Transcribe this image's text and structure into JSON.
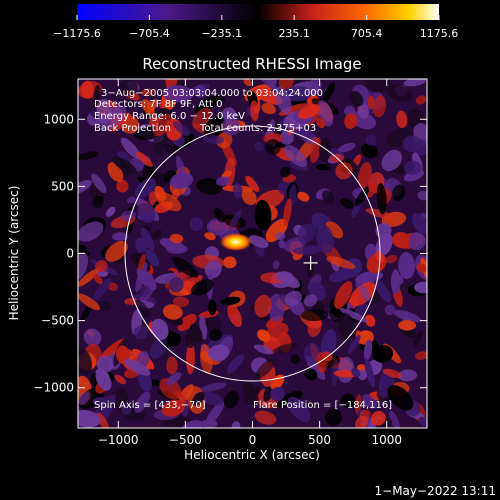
{
  "chart_data": {
    "type": "heatmap",
    "title": "Reconstructed RHESSI Image",
    "xlabel": "Heliocentric X (arcsec)",
    "ylabel": "Heliocentric Y (arcsec)",
    "xlim": [
      -1300,
      1300
    ],
    "ylim": [
      -1300,
      1300
    ],
    "xticks": [
      -1000,
      -500,
      0,
      500,
      1000
    ],
    "yticks": [
      -1000,
      -500,
      0,
      500,
      1000
    ],
    "xtick_labels": [
      "−1000",
      "−500",
      "0",
      "500",
      "1000"
    ],
    "ytick_labels": [
      "−1000",
      "−500",
      "0",
      "500",
      "1000"
    ],
    "colorbar": {
      "min": -1175.6,
      "max": 1175.6,
      "ticks": [
        -1175.6,
        -705.4,
        -235.1,
        235.1,
        705.4,
        1175.6
      ],
      "tick_labels": [
        "−1175.6",
        "−705.4",
        "−235.1",
        "235.1",
        "705.4",
        "1175.6"
      ]
    },
    "annotations": {
      "time_range": "3−Aug−2005 03:03:04.000 to 03:04:24.000",
      "detectors": "Detectors: 7F 8F 9F, Att 0",
      "energy": "Energy Range: 6.0 − 12.0 keV",
      "method": "Back Projection",
      "counts": "Total counts: 2.375+03",
      "spin_axis": "Spin Axis = [433,−70]",
      "flare_position": "Flare Position = [−184,116]"
    },
    "solar_limb_radius_arcsec": 950,
    "spin_axis": [
      433,
      -70
    ],
    "flare_position": [
      -184,
      116
    ],
    "flare_peak_value": 1175.6,
    "footer": "1−May−2022 13:11"
  },
  "colors": {
    "background": "#000000",
    "foreground": "#ffffff",
    "colormap": [
      "#0000ff",
      "#4b0082",
      "#000000",
      "#c8201a",
      "#ff6a00",
      "#ffd200",
      "#ffffff"
    ]
  }
}
